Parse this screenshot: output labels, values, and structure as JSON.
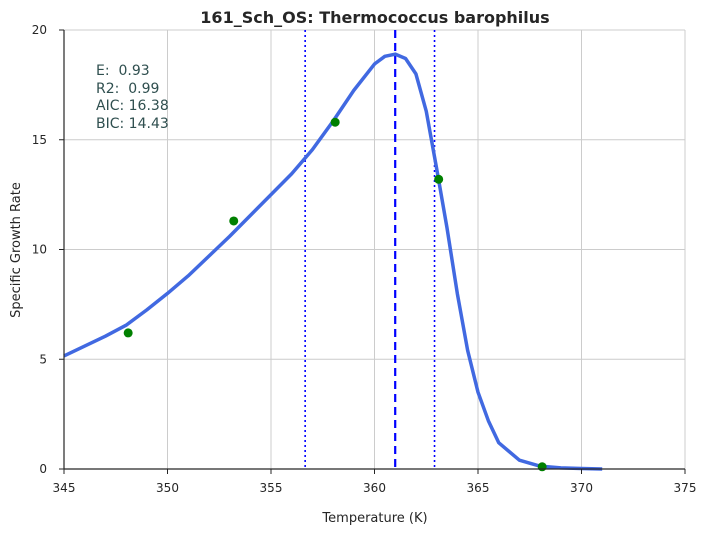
{
  "chart_data": {
    "type": "line",
    "title": "161_Sch_OS: Thermococcus barophilus",
    "xlabel": "Temperature (K)",
    "ylabel": "Specific Growth Rate",
    "xlim": [
      345,
      375
    ],
    "ylim": [
      0,
      20
    ],
    "xticks": [
      345,
      350,
      355,
      360,
      365,
      370,
      375
    ],
    "yticks": [
      0,
      5,
      10,
      15,
      20
    ],
    "grid": true,
    "points": {
      "x": [
        348.1,
        353.2,
        358.1,
        363.1,
        368.1
      ],
      "y": [
        6.2,
        11.3,
        15.8,
        13.2,
        0.1
      ],
      "color": "#008000"
    },
    "fit_curve": {
      "color": "#4169e1",
      "x": [
        345,
        346,
        347,
        348,
        349,
        350,
        351,
        352,
        353,
        354,
        355,
        356,
        357,
        358,
        359,
        360,
        360.5,
        361,
        361.5,
        362,
        362.5,
        363,
        363.5,
        364,
        364.5,
        365,
        365.5,
        366,
        367,
        368,
        369,
        370,
        371
      ],
      "y": [
        5.15,
        5.6,
        6.05,
        6.55,
        7.25,
        8.0,
        8.8,
        9.7,
        10.6,
        11.55,
        12.5,
        13.45,
        14.55,
        15.85,
        17.25,
        18.45,
        18.8,
        18.9,
        18.7,
        18.0,
        16.3,
        13.7,
        11.0,
        8.0,
        5.4,
        3.5,
        2.2,
        1.2,
        0.4,
        0.13,
        0.05,
        0.02,
        0.0
      ]
    },
    "vlines": [
      {
        "x": 361.0,
        "style": "dashed",
        "color": "#0000ff"
      },
      {
        "x": 356.65,
        "style": "dotted",
        "color": "#0000ff"
      },
      {
        "x": 362.9,
        "style": "dotted",
        "color": "#0000ff"
      }
    ],
    "annotations": [
      "E:  0.93",
      "R2:  0.99",
      "AIC: 16.38",
      "BIC: 14.43"
    ]
  }
}
